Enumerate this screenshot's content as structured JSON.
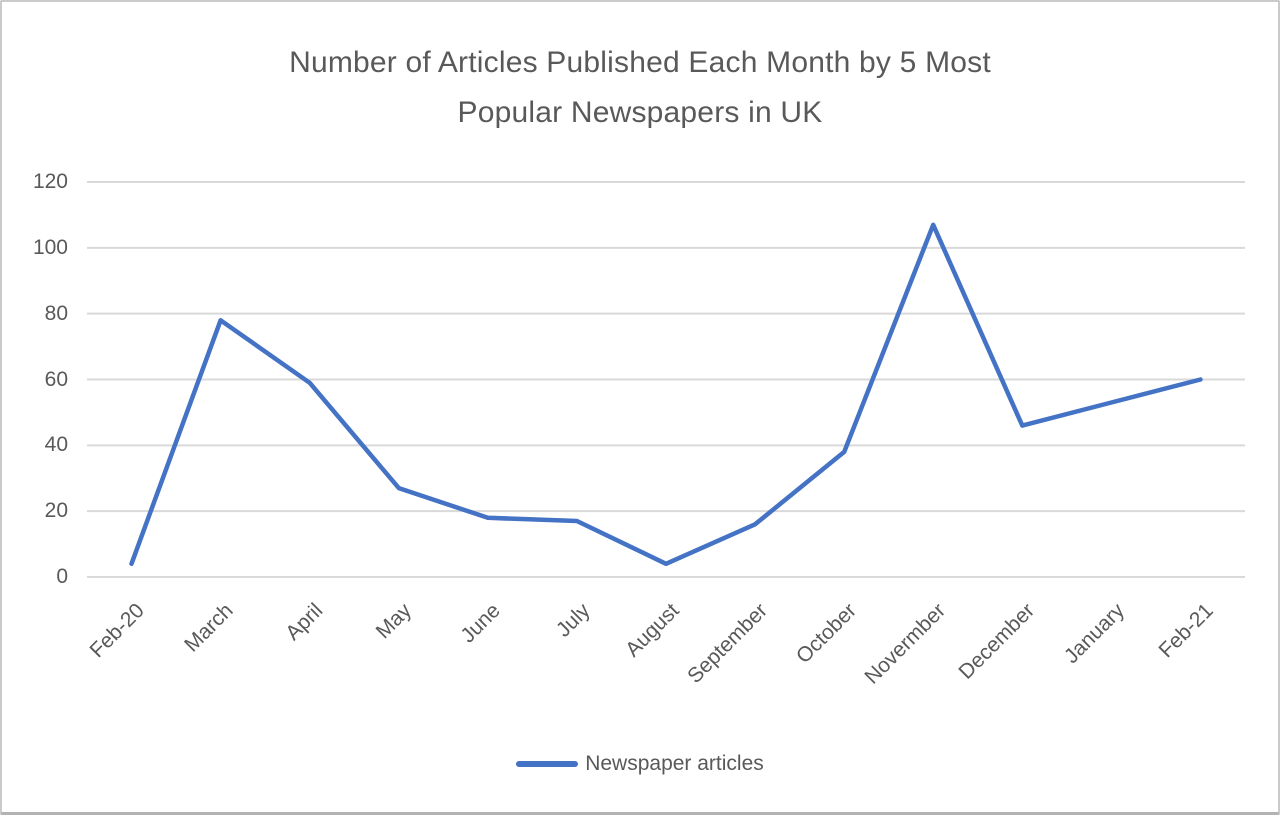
{
  "title": {
    "lines": [
      "Number of Articles Published Each Month by 5 Most",
      "Popular Newspapers in UK"
    ]
  },
  "legend": {
    "label": "Newspaper articles"
  },
  "colors": {
    "series": "#4472C4",
    "gridline": "#D9D9D9",
    "text": "#595959"
  },
  "chart_data": {
    "type": "line",
    "title": "Number of Articles Published Each Month by 5 Most Popular Newspapers in UK",
    "categories": [
      "Feb-20",
      "March",
      "April",
      "May",
      "June",
      "July",
      "August",
      "September",
      "October",
      "Novermber",
      "December",
      "January",
      "Feb-21"
    ],
    "series": [
      {
        "name": "Newspaper articles",
        "values": [
          4,
          78,
          59,
          27,
          18,
          17,
          4,
          16,
          38,
          107,
          46,
          53,
          60
        ]
      }
    ],
    "xlabel": "",
    "ylabel": "",
    "ylim": [
      0,
      120
    ],
    "yticks": [
      0,
      20,
      40,
      60,
      80,
      100,
      120
    ],
    "grid": true,
    "legend_position": "bottom"
  }
}
